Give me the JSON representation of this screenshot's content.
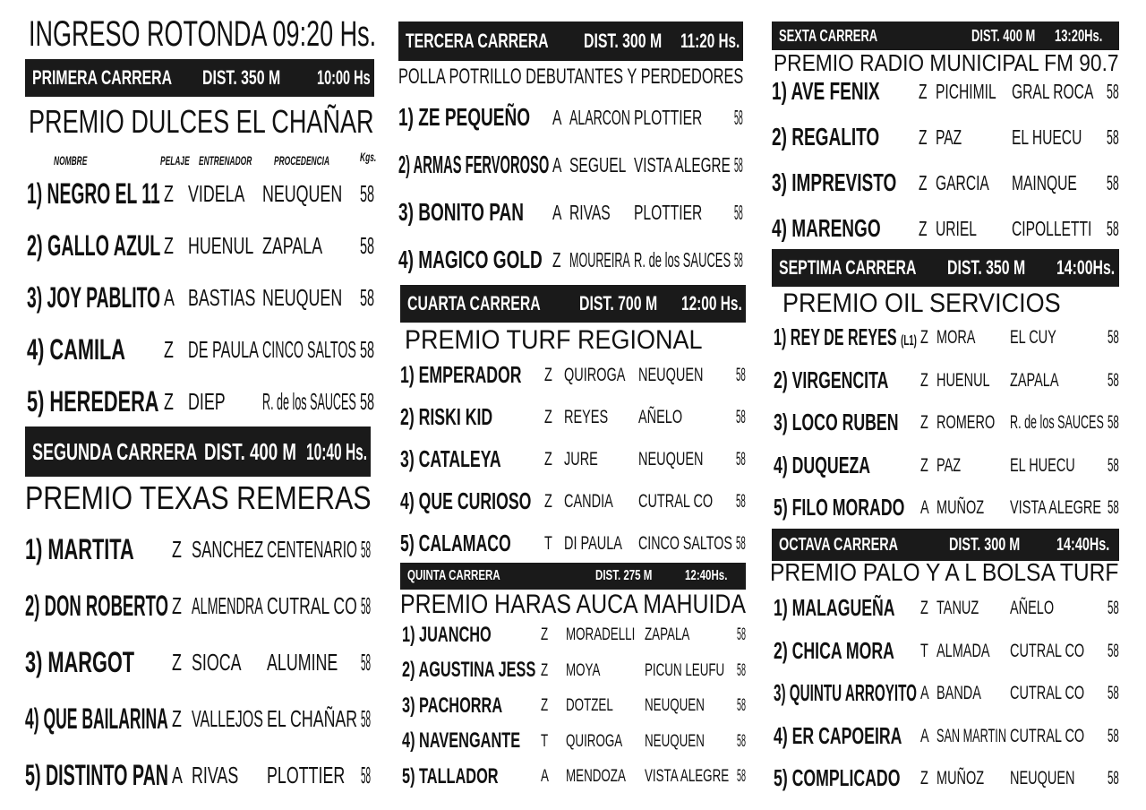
{
  "heading": "INGRESO ROTONDA 09:20 Hs.",
  "column_headers": {
    "name": "NOMBRE",
    "pelaje": "PELAJE",
    "trainer": "ENTRENADOR",
    "origin": "PROCEDENCIA",
    "kgs": "Kgs."
  },
  "races": [
    {
      "race": "PRIMERA CARRERA",
      "distance": "DIST.  350 M",
      "time": "10:00 Hs",
      "prize": "PREMIO DULCES EL CHAÑAR",
      "entries": [
        {
          "name": "1) NEGRO EL 11",
          "pelaje": "Z",
          "trainer": "VIDELA",
          "origin": "NEUQUEN",
          "kgs": "58"
        },
        {
          "name": "2) GALLO AZUL",
          "pelaje": "Z",
          "trainer": "HUENUL",
          "origin": "ZAPALA",
          "kgs": "58"
        },
        {
          "name": "3) JOY PABLITO",
          "pelaje": "A",
          "trainer": "BASTIAS",
          "origin": "NEUQUEN",
          "kgs": "58"
        },
        {
          "name": "4) CAMILA",
          "pelaje": "Z",
          "trainer": "DE PAULA",
          "origin": "CINCO SALTOS",
          "kgs": "58"
        },
        {
          "name": "5) HEREDERA",
          "pelaje": "Z",
          "trainer": "DIEP",
          "origin": "R. de los SAUCES",
          "kgs": "58"
        }
      ]
    },
    {
      "race": "SEGUNDA CARRERA",
      "distance": "DIST. 400 M",
      "time": "10:40 Hs.",
      "prize": "PREMIO TEXAS REMERAS",
      "entries": [
        {
          "name": "1) MARTITA",
          "pelaje": "Z",
          "trainer": "SANCHEZ",
          "origin": "CENTENARIO",
          "kgs": "58"
        },
        {
          "name": "2) DON ROBERTO",
          "pelaje": "Z",
          "trainer": "ALMENDRA",
          "origin": "CUTRAL CO",
          "kgs": "58"
        },
        {
          "name": "3) MARGOT",
          "pelaje": "Z",
          "trainer": "SIOCA",
          "origin": "ALUMINE",
          "kgs": "58"
        },
        {
          "name": "4) QUE BAILARINA",
          "pelaje": "Z",
          "trainer": "VALLEJOS",
          "origin": "EL CHAÑAR",
          "kgs": "58"
        },
        {
          "name": "5) DISTINTO PAN",
          "pelaje": "A",
          "trainer": "RIVAS",
          "origin": "PLOTTIER",
          "kgs": "58"
        }
      ]
    },
    {
      "race": "TERCERA CARRERA",
      "distance": "DIST.  300 M",
      "time": "11:20 Hs.",
      "prize": "POLLA POTRILLO DEBUTANTES Y PERDEDORES",
      "entries": [
        {
          "name": "1) ZE PEQUEÑO",
          "pelaje": "A",
          "trainer": "ALARCON",
          "origin": "PLOTTIER",
          "kgs": "58"
        },
        {
          "name": "2) ARMAS FERVOROSO",
          "pelaje": "A",
          "trainer": "SEGUEL",
          "origin": "VISTA ALEGRE",
          "kgs": "58"
        },
        {
          "name": "3) BONITO PAN",
          "pelaje": "A",
          "trainer": "RIVAS",
          "origin": "PLOTTIER",
          "kgs": "58"
        },
        {
          "name": "4) MAGICO GOLD",
          "pelaje": "Z",
          "trainer": "MOUREIRA",
          "origin": "R. de los SAUCES",
          "kgs": "58"
        }
      ]
    },
    {
      "race": "CUARTA CARRERA",
      "distance": "DIST. 700 M",
      "time": "12:00 Hs.",
      "prize": "PREMIO TURF REGIONAL",
      "entries": [
        {
          "name": "1) EMPERADOR",
          "pelaje": "Z",
          "trainer": "QUIROGA",
          "origin": "NEUQUEN",
          "kgs": "58"
        },
        {
          "name": "2) RISKI KID",
          "pelaje": "Z",
          "trainer": "REYES",
          "origin": "AÑELO",
          "kgs": "58"
        },
        {
          "name": "3) CATALEYA",
          "pelaje": "Z",
          "trainer": "JURE",
          "origin": "NEUQUEN",
          "kgs": "58"
        },
        {
          "name": "4) QUE CURIOSO",
          "pelaje": "Z",
          "trainer": "CANDIA",
          "origin": "CUTRAL CO",
          "kgs": "58"
        },
        {
          "name": "5) CALAMACO",
          "pelaje": "T",
          "trainer": "DI PAULA",
          "origin": "CINCO SALTOS",
          "kgs": "58"
        }
      ]
    },
    {
      "race": "QUINTA  CARRERA",
      "distance": "DIST. 275 M",
      "time": "12:40Hs.",
      "prize": "PREMIO HARAS AUCA MAHUIDA",
      "entries": [
        {
          "name": "1) JUANCHO",
          "pelaje": "Z",
          "trainer": "MORADELLI",
          "origin": "ZAPALA",
          "kgs": "58"
        },
        {
          "name": "2) AGUSTINA JESS",
          "pelaje": "Z",
          "trainer": "MOYA",
          "origin": "PICUN LEUFU",
          "kgs": "58"
        },
        {
          "name": "3) PACHORRA",
          "pelaje": "Z",
          "trainer": "DOTZEL",
          "origin": "NEUQUEN",
          "kgs": "58"
        },
        {
          "name": "4) NAVENGANTE",
          "pelaje": "T",
          "trainer": "QUIROGA",
          "origin": "NEUQUEN",
          "kgs": "58"
        },
        {
          "name": "5) TALLADOR",
          "pelaje": "A",
          "trainer": "MENDOZA",
          "origin": "VISTA ALEGRE",
          "kgs": "58"
        }
      ]
    },
    {
      "race": "SEXTA  CARRERA",
      "distance": "DIST. 400 M",
      "time": "13:20Hs.",
      "prize": "PREMIO RADIO MUNICIPAL FM 90.7",
      "entries": [
        {
          "name": "1) AVE FENIX",
          "pelaje": "Z",
          "trainer": "PICHIMIL",
          "origin": "GRAL ROCA",
          "kgs": "58"
        },
        {
          "name": "2) REGALITO",
          "pelaje": "Z",
          "trainer": "PAZ",
          "origin": "EL HUECU",
          "kgs": "58"
        },
        {
          "name": "3) IMPREVISTO",
          "pelaje": "Z",
          "trainer": "GARCIA",
          "origin": "MAINQUE",
          "kgs": "58"
        },
        {
          "name": "4) MARENGO",
          "pelaje": "Z",
          "trainer": "URIEL",
          "origin": "CIPOLLETTI",
          "kgs": "58"
        }
      ]
    },
    {
      "race": "SEPTIMA  CARRERA",
      "distance": "DIST.  350 M",
      "time": "14:00Hs.",
      "prize": "PREMIO OIL SERVICIOS",
      "entries": [
        {
          "name": "1) REY DE REYES",
          "suffix": "(L1)",
          "pelaje": "Z",
          "trainer": "MORA",
          "origin": "EL CUY",
          "kgs": "58"
        },
        {
          "name": "2) VIRGENCITA",
          "pelaje": "Z",
          "trainer": "HUENUL",
          "origin": "ZAPALA",
          "kgs": "58"
        },
        {
          "name": "3) LOCO RUBEN",
          "pelaje": "Z",
          "trainer": "ROMERO",
          "origin": "R. de los SAUCES",
          "kgs": "58"
        },
        {
          "name": "4) DUQUEZA",
          "pelaje": "Z",
          "trainer": "PAZ",
          "origin": "EL HUECU",
          "kgs": "58"
        },
        {
          "name": "5) FILO MORADO",
          "pelaje": "A",
          "trainer": "MUÑOZ",
          "origin": "VISTA ALEGRE",
          "kgs": "58"
        }
      ]
    },
    {
      "race": "OCTAVA  CARRERA",
      "distance": "DIST.  300 M",
      "time": "14:40Hs.",
      "prize": "PREMIO PALO Y A L BOLSA TURF",
      "entries": [
        {
          "name": "1) MALAGUEÑA",
          "pelaje": "Z",
          "trainer": "TANUZ",
          "origin": "AÑELO",
          "kgs": "58"
        },
        {
          "name": "2) CHICA MORA",
          "pelaje": "T",
          "trainer": "ALMADA",
          "origin": "CUTRAL CO",
          "kgs": "58"
        },
        {
          "name": "3) QUINTU ARROYITO",
          "pelaje": "A",
          "trainer": "BANDA",
          "origin": "CUTRAL CO",
          "kgs": "58"
        },
        {
          "name": "4) ER CAPOEIRA",
          "pelaje": "A",
          "trainer": "SAN MARTIN",
          "origin": "CUTRAL CO",
          "kgs": "58"
        },
        {
          "name": "5) COMPLICADO",
          "pelaje": "Z",
          "trainer": "MUÑOZ",
          "origin": "NEUQUEN",
          "kgs": "58"
        }
      ]
    }
  ]
}
